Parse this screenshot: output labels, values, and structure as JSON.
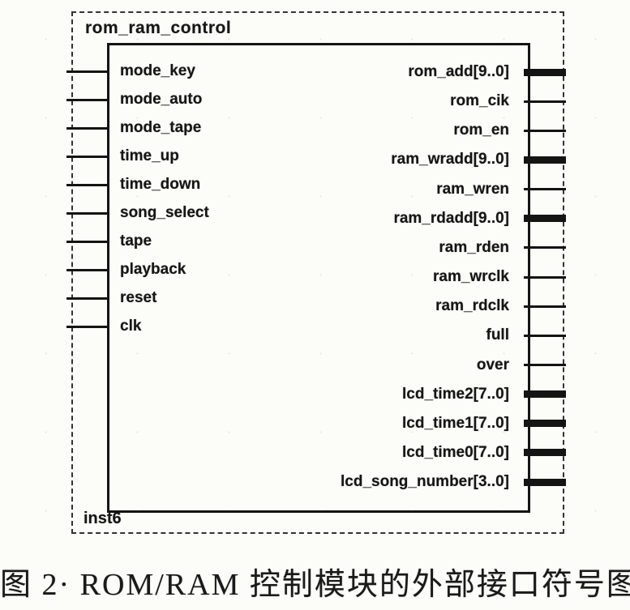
{
  "figure": {
    "module_name": "rom_ram_control",
    "instance_name": "inst6",
    "inputs": [
      {
        "name": "mode_key",
        "bus": false
      },
      {
        "name": "mode_auto",
        "bus": false
      },
      {
        "name": "mode_tape",
        "bus": false
      },
      {
        "name": "time_up",
        "bus": false
      },
      {
        "name": "time_down",
        "bus": false
      },
      {
        "name": "song_select",
        "bus": false
      },
      {
        "name": "tape",
        "bus": false
      },
      {
        "name": "playback",
        "bus": false
      },
      {
        "name": "reset",
        "bus": false
      },
      {
        "name": "clk",
        "bus": false
      }
    ],
    "outputs": [
      {
        "name": "rom_add[9..0]",
        "bus": true
      },
      {
        "name": "rom_cik",
        "bus": false
      },
      {
        "name": "rom_en",
        "bus": false
      },
      {
        "name": "ram_wradd[9..0]",
        "bus": true
      },
      {
        "name": "ram_wren",
        "bus": false
      },
      {
        "name": "ram_rdadd[9..0]",
        "bus": true
      },
      {
        "name": "ram_rden",
        "bus": false
      },
      {
        "name": "ram_wrclk",
        "bus": false
      },
      {
        "name": "ram_rdclk",
        "bus": false
      },
      {
        "name": "full",
        "bus": false
      },
      {
        "name": "over",
        "bus": false
      },
      {
        "name": "lcd_time2[7..0]",
        "bus": true
      },
      {
        "name": "lcd_time1[7..0]",
        "bus": true
      },
      {
        "name": "lcd_time0[7..0]",
        "bus": true
      },
      {
        "name": "lcd_song_number[3..0]",
        "bus": true
      }
    ],
    "caption": "图 2· ROM/RAM 控制模块的外部接口符号图"
  },
  "colors": {
    "ink": "#141414",
    "paper": "#fcfcf9"
  }
}
